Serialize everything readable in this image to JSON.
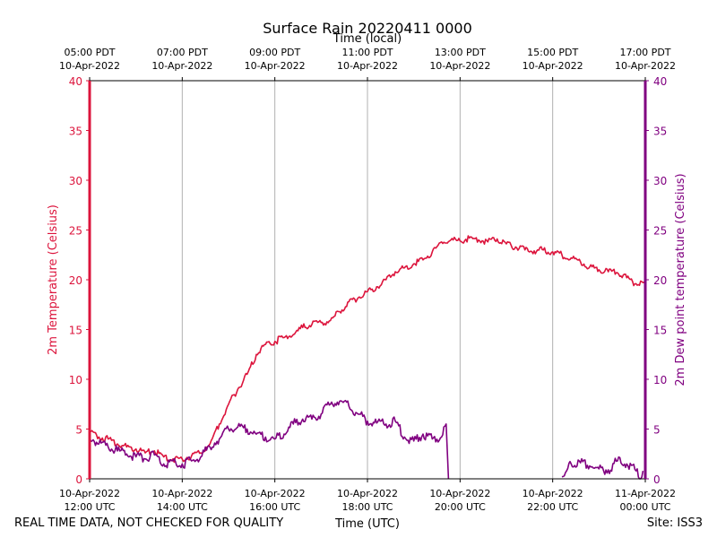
{
  "chart_data": {
    "type": "line",
    "title": "Surface Rain 20220411 0000",
    "top_axis_label": "Time (local)",
    "xlabel": "Time (UTC)",
    "ylabel_left": "2m Temperature (Celsius)",
    "ylabel_right": "2m Dew point temperature (Celsius)",
    "ylim": [
      0,
      40
    ],
    "yticks": [
      "0",
      "5",
      "10",
      "15",
      "20",
      "25",
      "30",
      "35",
      "40"
    ],
    "x_unit": "hours UTC on 10-Apr-2022 (24 = 11-Apr-2022 00:00 UTC)",
    "xlim": [
      12,
      24
    ],
    "grid": "vertical",
    "bottom_ticks": [
      {
        "x": 12,
        "date": "10-Apr-2022",
        "time": "12:00 UTC"
      },
      {
        "x": 14,
        "date": "10-Apr-2022",
        "time": "14:00 UTC"
      },
      {
        "x": 16,
        "date": "10-Apr-2022",
        "time": "16:00 UTC"
      },
      {
        "x": 18,
        "date": "10-Apr-2022",
        "time": "18:00 UTC"
      },
      {
        "x": 20,
        "date": "10-Apr-2022",
        "time": "20:00 UTC"
      },
      {
        "x": 22,
        "date": "10-Apr-2022",
        "time": "22:00 UTC"
      },
      {
        "x": 24,
        "date": "11-Apr-2022",
        "time": "00:00 UTC"
      }
    ],
    "top_ticks": [
      {
        "x": 12,
        "time": "05:00 PDT",
        "date": "10-Apr-2022"
      },
      {
        "x": 14,
        "time": "07:00 PDT",
        "date": "10-Apr-2022"
      },
      {
        "x": 16,
        "time": "09:00 PDT",
        "date": "10-Apr-2022"
      },
      {
        "x": 18,
        "time": "11:00 PDT",
        "date": "10-Apr-2022"
      },
      {
        "x": 20,
        "time": "13:00 PDT",
        "date": "10-Apr-2022"
      },
      {
        "x": 22,
        "time": "15:00 PDT",
        "date": "10-Apr-2022"
      },
      {
        "x": 24,
        "time": "17:00 PDT",
        "date": "10-Apr-2022"
      }
    ],
    "series": [
      {
        "axis": "left",
        "color": "#dc143c",
        "x": [
          12.0,
          12.2,
          12.4,
          12.6,
          12.8,
          13.0,
          13.2,
          13.4,
          13.6,
          13.8,
          14.0,
          14.2,
          14.4,
          14.6,
          14.8,
          15.0,
          15.2,
          15.4,
          15.6,
          15.8,
          16.0,
          16.2,
          16.4,
          16.6,
          16.8,
          17.0,
          17.2,
          17.4,
          17.6,
          17.8,
          18.0,
          18.2,
          18.4,
          18.6,
          18.8,
          19.0,
          19.2,
          19.4,
          19.6,
          19.8,
          20.0,
          20.2,
          20.4,
          20.6,
          20.8,
          21.0,
          21.2,
          21.4,
          21.6,
          21.8,
          22.0,
          22.2,
          22.4,
          22.6,
          22.8,
          23.0,
          23.2,
          23.4,
          23.6,
          23.8,
          24.0
        ],
        "y": [
          4.8,
          4.2,
          4.0,
          3.5,
          3.2,
          3.0,
          2.6,
          2.8,
          2.2,
          2.0,
          2.0,
          2.3,
          2.6,
          3.5,
          5.5,
          7.5,
          9.0,
          10.5,
          12.5,
          13.5,
          13.8,
          14.2,
          14.5,
          15.2,
          15.5,
          15.7,
          15.9,
          16.8,
          17.8,
          18.2,
          18.8,
          19.3,
          20.0,
          20.8,
          21.2,
          21.6,
          22.0,
          22.8,
          23.8,
          24.0,
          23.9,
          24.2,
          24.0,
          23.8,
          24.1,
          23.6,
          23.3,
          23.0,
          22.9,
          23.0,
          22.8,
          22.5,
          22.2,
          21.8,
          21.3,
          21.0,
          20.8,
          20.7,
          20.2,
          19.6,
          19.5
        ]
      },
      {
        "axis": "right",
        "color": "#800080",
        "segments": [
          {
            "x": [
              12.0,
              12.2,
              12.4,
              12.6,
              12.8,
              13.0,
              13.2,
              13.4,
              13.6,
              13.8,
              14.0,
              14.2,
              14.4,
              14.6,
              14.8,
              15.0,
              15.2,
              15.4,
              15.6,
              15.8,
              16.0,
              16.2,
              16.4,
              16.6,
              16.8,
              17.0,
              17.2,
              17.4,
              17.6,
              17.8,
              18.0,
              18.2,
              18.4,
              18.6,
              18.8,
              19.0,
              19.2,
              19.4,
              19.6,
              19.7,
              19.75
            ],
            "y": [
              4.2,
              3.5,
              3.2,
              2.8,
              2.5,
              2.2,
              2.0,
              2.4,
              1.5,
              1.8,
              1.5,
              1.8,
              2.2,
              3.2,
              4.0,
              5.0,
              5.2,
              5.0,
              4.5,
              4.2,
              4.0,
              4.5,
              5.5,
              6.0,
              6.0,
              6.5,
              7.5,
              7.8,
              7.3,
              6.5,
              5.8,
              5.6,
              5.5,
              5.8,
              4.2,
              3.8,
              4.5,
              4.0,
              4.2,
              5.5,
              0
            ]
          },
          {
            "x": [
              22.2,
              22.3,
              22.4,
              22.6,
              22.8,
              23.0,
              23.2,
              23.4,
              23.6,
              23.8,
              23.9,
              23.95
            ],
            "y": [
              0.2,
              0.8,
              1.5,
              1.6,
              1.3,
              1.0,
              0.9,
              1.8,
              1.5,
              0.8,
              0,
              0.8
            ]
          }
        ]
      }
    ]
  },
  "footer": {
    "left": "REAL TIME DATA, NOT CHECKED FOR QUALITY",
    "site": "Site: ISS3"
  }
}
